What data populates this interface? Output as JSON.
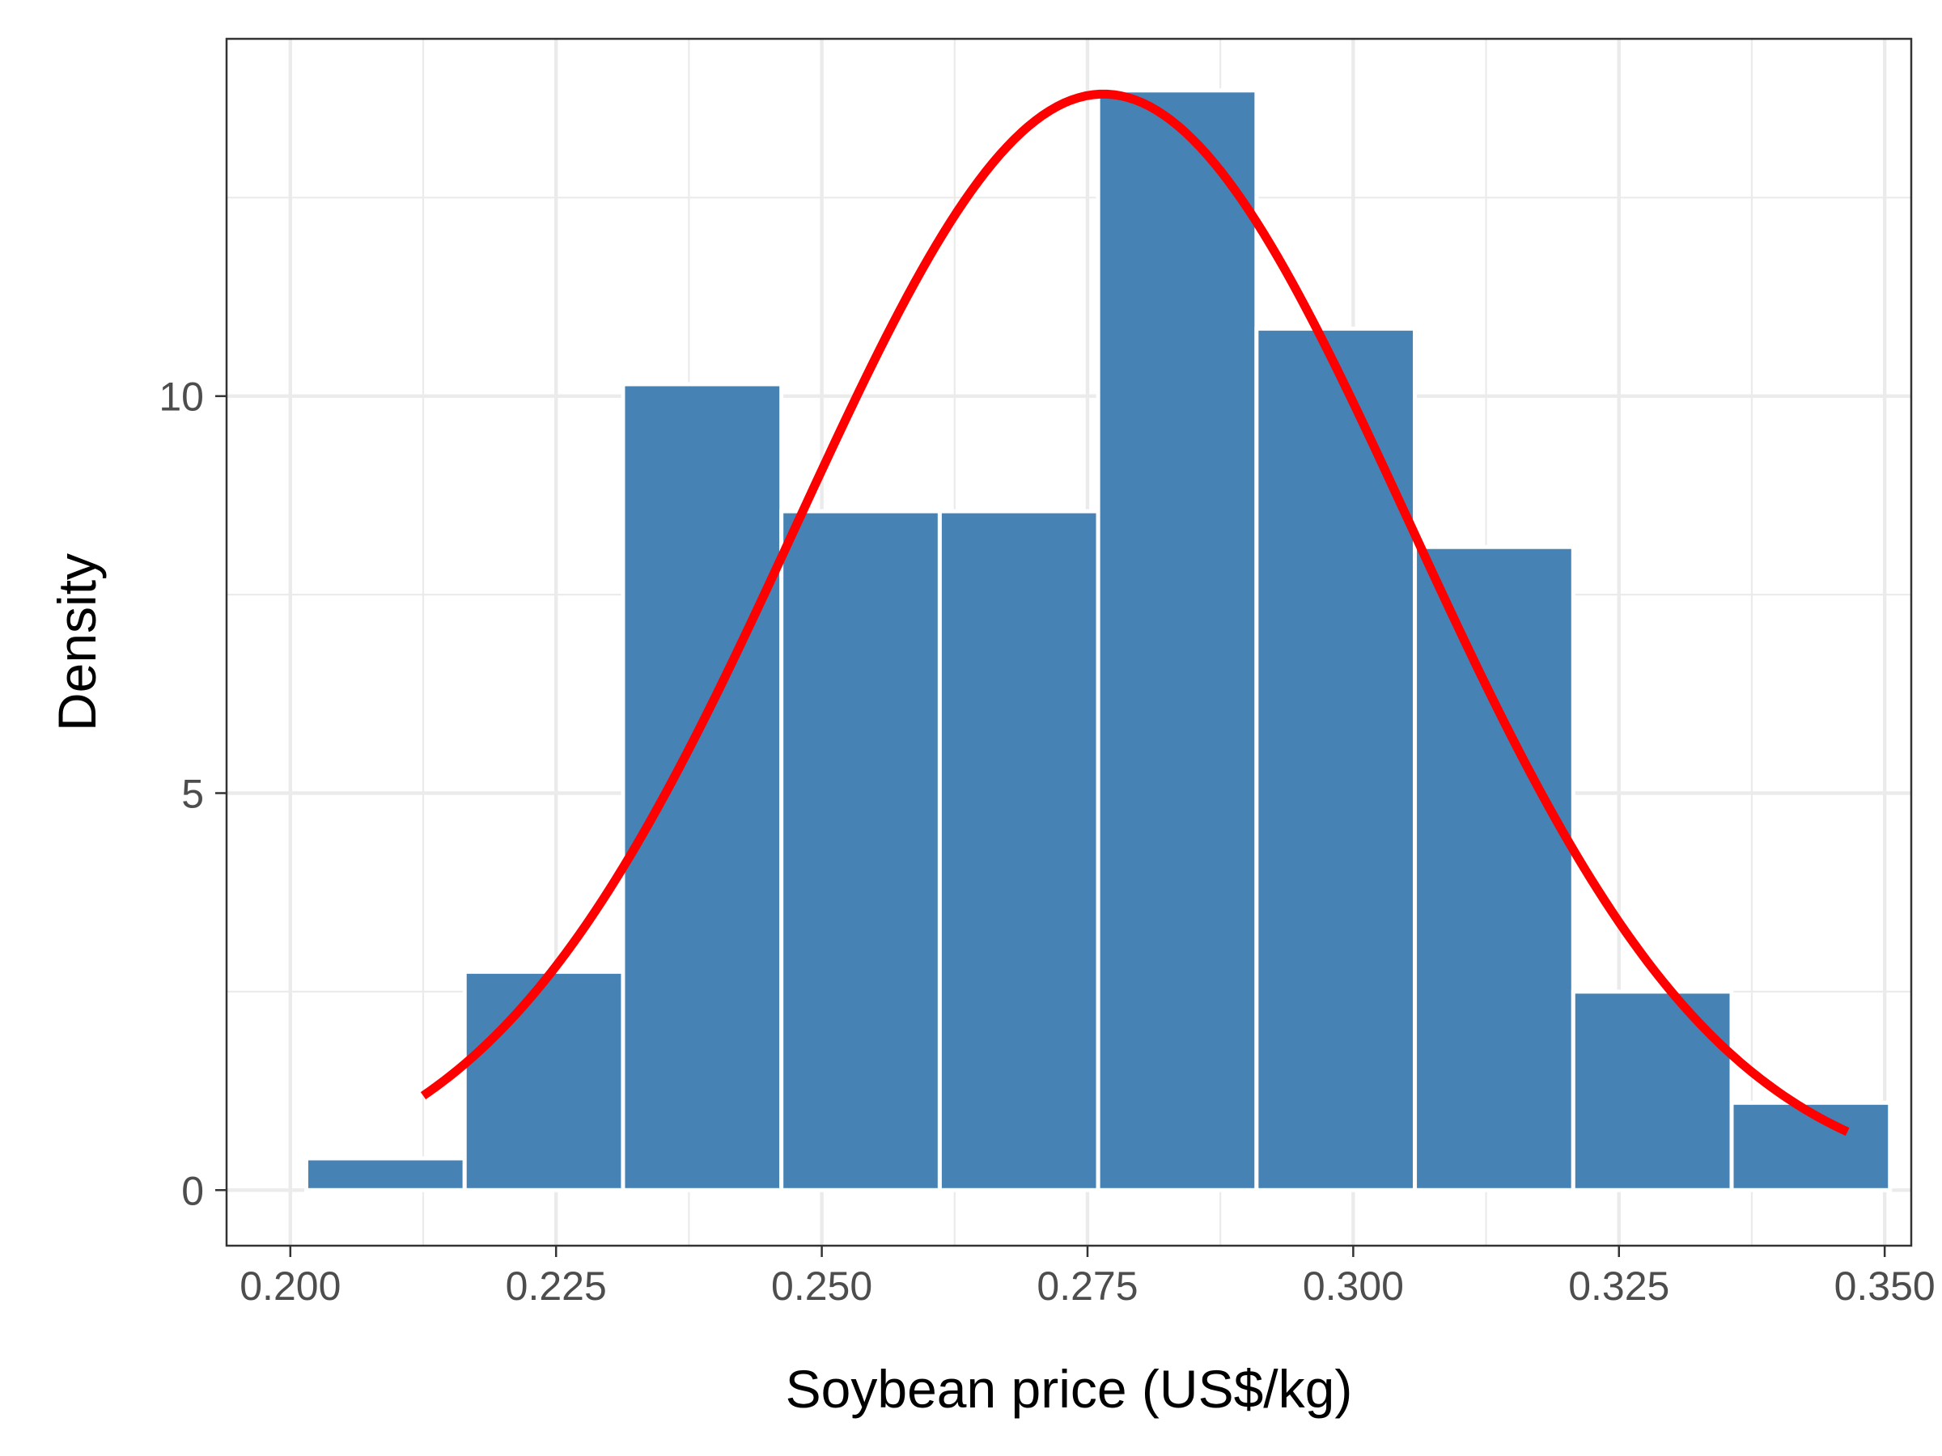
{
  "chart_data": {
    "type": "bar",
    "subtype": "histogram-with-density-curve",
    "xlabel": "Soybean price (US$/kg)",
    "ylabel": "Density",
    "xlim": [
      0.194,
      0.3525
    ],
    "ylim": [
      -0.7,
      14.5
    ],
    "x_ticks": [
      0.2,
      0.225,
      0.25,
      0.275,
      0.3,
      0.325,
      0.35
    ],
    "x_tick_labels": [
      "0.200",
      "0.225",
      "0.250",
      "0.275",
      "0.300",
      "0.325",
      "0.350"
    ],
    "x_minor_ticks": [
      0.2125,
      0.2375,
      0.2625,
      0.2875,
      0.3125,
      0.3375
    ],
    "y_ticks": [
      0,
      5,
      10
    ],
    "y_tick_labels": [
      "0",
      "5",
      "10"
    ],
    "y_minor_ticks": [
      2.5,
      7.5,
      12.5
    ],
    "grid": true,
    "bins": [
      {
        "x0": 0.2015,
        "x1": 0.2164,
        "density": 0.4
      },
      {
        "x0": 0.2164,
        "x1": 0.2313,
        "density": 2.75
      },
      {
        "x0": 0.2313,
        "x1": 0.2462,
        "density": 10.15
      },
      {
        "x0": 0.2462,
        "x1": 0.2611,
        "density": 8.55
      },
      {
        "x0": 0.2611,
        "x1": 0.276,
        "density": 8.55
      },
      {
        "x0": 0.276,
        "x1": 0.2909,
        "density": 13.85
      },
      {
        "x0": 0.2909,
        "x1": 0.3058,
        "density": 10.85
      },
      {
        "x0": 0.3058,
        "x1": 0.3207,
        "density": 8.1
      },
      {
        "x0": 0.3207,
        "x1": 0.3356,
        "density": 2.5
      },
      {
        "x0": 0.3356,
        "x1": 0.3505,
        "density": 1.1
      }
    ],
    "curve": {
      "distribution": "normal",
      "mean": 0.2765,
      "sd": 0.0289,
      "x_range": [
        0.2125,
        0.3465
      ]
    },
    "colors": {
      "bar_fill": "#4682b4",
      "bar_edge": "#ffffff",
      "curve": "#ff0000",
      "grid": "#ebebeb",
      "panel_border": "#333333"
    }
  }
}
